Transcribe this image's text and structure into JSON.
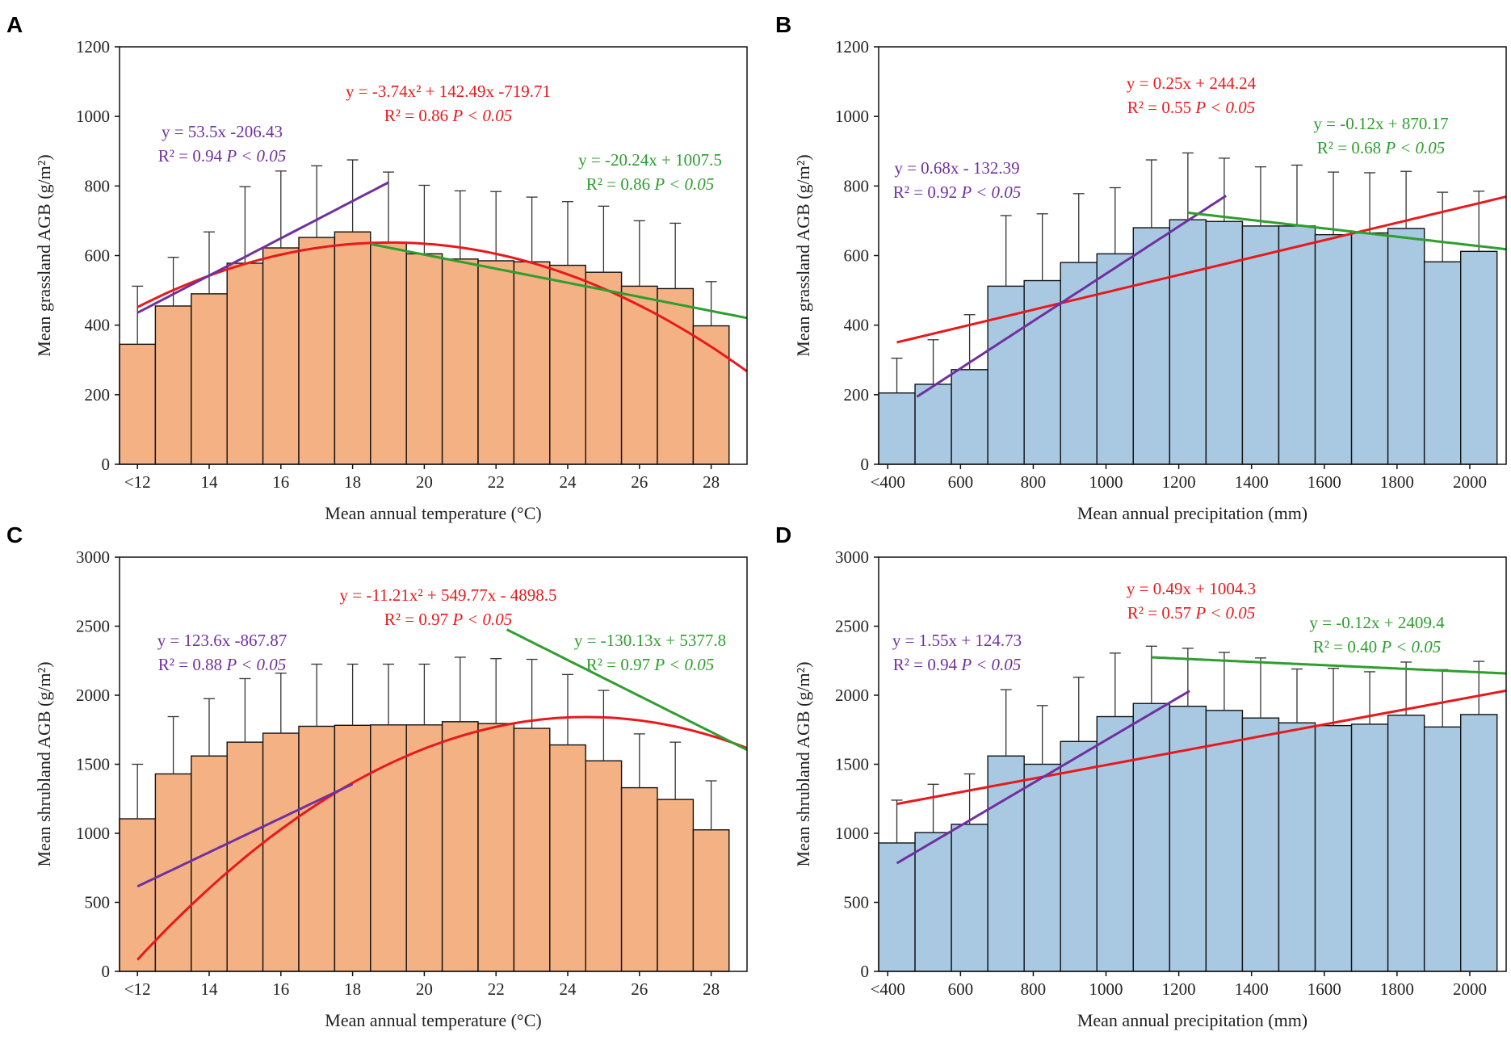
{
  "colors": {
    "temperature_bar": "#F4B183",
    "precipitation_bar": "#A9C9E3",
    "red_fit": "#E8191C",
    "purple_fit": "#7030A0",
    "green_fit": "#2E9E2E"
  },
  "chart_data": [
    {
      "panel": "A",
      "type": "bar",
      "ylabel": "Mean grassland AGB (g/m²)",
      "xlabel": "Mean annual temperature (°C)",
      "ylim": [
        0,
        1200
      ],
      "yticks": [
        0,
        200,
        400,
        600,
        800,
        1000,
        1200
      ],
      "xlim": [
        11.5,
        29
      ],
      "xticks": [
        12,
        14,
        16,
        18,
        20,
        22,
        24,
        26,
        28
      ],
      "xtick_labels": [
        "<12",
        "14",
        "16",
        "18",
        "20",
        "22",
        "24",
        "26",
        "28"
      ],
      "bar_color_key": "temperature_bar",
      "bar_width": 1,
      "x": [
        12,
        13,
        14,
        15,
        16,
        17,
        18,
        19,
        20,
        21,
        22,
        23,
        24,
        25,
        26,
        27,
        28
      ],
      "values": [
        345,
        455,
        490,
        578,
        622,
        652,
        668,
        638,
        605,
        590,
        585,
        582,
        572,
        552,
        512,
        505,
        398
      ],
      "errors_upper": [
        512,
        595,
        668,
        798,
        843,
        858,
        875,
        840,
        802,
        786,
        784,
        768,
        755,
        742,
        700,
        693,
        525
      ],
      "fits": [
        {
          "name": "quadratic-fit",
          "color_key": "red_fit",
          "coef": [
            -3.74,
            142.49,
            -719.71
          ],
          "x_range": [
            12,
            29
          ]
        },
        {
          "name": "rising-linear-fit",
          "color_key": "purple_fit",
          "coef": [
            53.5,
            -206.43
          ],
          "x_range": [
            12,
            19
          ]
        },
        {
          "name": "falling-linear-fit",
          "color_key": "green_fit",
          "coef": [
            -20.24,
            1007.5
          ],
          "x_range": [
            18.5,
            29
          ]
        }
      ],
      "annotations": [
        {
          "name": "quadratic-annotation",
          "color_key": "red_fit",
          "line1": "y = -3.74x² + 142.49x -719.71",
          "line2_r": "R² = 0.86",
          "line2_p": "P < 0.05"
        },
        {
          "name": "rising-annotation",
          "color_key": "purple_fit",
          "line1": "y = 53.5x -206.43",
          "line2_r": "R² = 0.94",
          "line2_p": "P < 0.05"
        },
        {
          "name": "falling-annotation",
          "color_key": "green_fit",
          "line1": "y = -20.24x + 1007.5",
          "line2_r": "R² = 0.86",
          "line2_p": "P < 0.05"
        }
      ]
    },
    {
      "panel": "B",
      "type": "bar",
      "ylabel": "Mean grassland AGB (g/m²)",
      "xlabel": "Mean annual precipitation (mm)",
      "ylim": [
        0,
        1200
      ],
      "yticks": [
        0,
        200,
        400,
        600,
        800,
        1000,
        1200
      ],
      "xlim": [
        375,
        2100
      ],
      "xticks": [
        400,
        600,
        800,
        1000,
        1200,
        1400,
        1600,
        1800,
        2000
      ],
      "xtick_labels": [
        "<400",
        "600",
        "800",
        "1000",
        "1200",
        "1400",
        "1600",
        "1800",
        "2000"
      ],
      "bar_color_key": "precipitation_bar",
      "bar_width": 100,
      "x": [
        425,
        525,
        625,
        725,
        825,
        925,
        1025,
        1125,
        1225,
        1325,
        1425,
        1525,
        1625,
        1725,
        1825,
        1925,
        2025
      ],
      "values": [
        205,
        230,
        272,
        512,
        528,
        580,
        605,
        680,
        703,
        698,
        685,
        685,
        660,
        665,
        678,
        582,
        612
      ],
      "errors_upper": [
        305,
        358,
        430,
        715,
        720,
        778,
        795,
        875,
        895,
        880,
        855,
        860,
        840,
        838,
        842,
        782,
        785
      ],
      "fits": [
        {
          "name": "overall-linear-fit",
          "color_key": "red_fit",
          "coef": [
            0.25,
            244.24
          ],
          "x_range": [
            425,
            2100
          ]
        },
        {
          "name": "rising-linear-fit",
          "color_key": "purple_fit",
          "coef": [
            0.68,
            -132.39
          ],
          "x_range": [
            480,
            1330
          ]
        },
        {
          "name": "falling-linear-fit",
          "color_key": "green_fit",
          "coef": [
            -0.12,
            870.17
          ],
          "x_range": [
            1225,
            2100
          ]
        }
      ],
      "annotations": [
        {
          "name": "overall-annotation",
          "color_key": "red_fit",
          "line1": "y = 0.25x + 244.24",
          "line2_r": "R² = 0.55",
          "line2_p": "P < 0.05"
        },
        {
          "name": "rising-annotation",
          "color_key": "purple_fit",
          "line1": "y = 0.68x - 132.39",
          "line2_r": "R² = 0.92",
          "line2_p": "P < 0.05"
        },
        {
          "name": "falling-annotation",
          "color_key": "green_fit",
          "line1": "y = -0.12x + 870.17",
          "line2_r": "R² = 0.68",
          "line2_p": "P < 0.05"
        }
      ]
    },
    {
      "panel": "C",
      "type": "bar",
      "ylabel": "Mean shrubland AGB (g/m²)",
      "xlabel": "Mean annual temperature (°C)",
      "ylim": [
        0,
        3000
      ],
      "yticks": [
        0,
        500,
        1000,
        1500,
        2000,
        2500,
        3000
      ],
      "xlim": [
        11.5,
        29
      ],
      "xticks": [
        12,
        14,
        16,
        18,
        20,
        22,
        24,
        26,
        28
      ],
      "xtick_labels": [
        "<12",
        "14",
        "16",
        "18",
        "20",
        "22",
        "24",
        "26",
        "28"
      ],
      "bar_color_key": "temperature_bar",
      "bar_width": 1,
      "x": [
        12,
        13,
        14,
        15,
        16,
        17,
        18,
        19,
        20,
        21,
        22,
        23,
        24,
        25,
        26,
        27,
        28
      ],
      "values": [
        1105,
        1430,
        1560,
        1660,
        1725,
        1775,
        1782,
        1785,
        1785,
        1808,
        1795,
        1760,
        1640,
        1525,
        1330,
        1245,
        1025
      ],
      "errors_upper": [
        1500,
        1845,
        1975,
        2120,
        2160,
        2225,
        2225,
        2225,
        2225,
        2275,
        2265,
        2260,
        2150,
        2035,
        1720,
        1660,
        1380
      ],
      "fits": [
        {
          "name": "quadratic-fit",
          "color_key": "red_fit",
          "coef": [
            -11.21,
            549.77,
            -4898.5
          ],
          "x_range": [
            12,
            29
          ]
        },
        {
          "name": "rising-linear-fit",
          "color_key": "purple_fit",
          "coef": [
            123.6,
            -867.87
          ],
          "x_range": [
            12,
            18
          ]
        },
        {
          "name": "falling-linear-fit",
          "color_key": "green_fit",
          "coef": [
            -130.13,
            5377.8
          ],
          "x_range": [
            22.3,
            29
          ]
        }
      ],
      "annotations": [
        {
          "name": "quadratic-annotation",
          "color_key": "red_fit",
          "line1": "y = -11.21x² + 549.77x - 4898.5",
          "line2_r": "R² = 0.97",
          "line2_p": "P < 0.05"
        },
        {
          "name": "rising-annotation",
          "color_key": "purple_fit",
          "line1": "y = 123.6x -867.87",
          "line2_r": "R² = 0.88",
          "line2_p": "P < 0.05"
        },
        {
          "name": "falling-annotation",
          "color_key": "green_fit",
          "line1": "y = -130.13x + 5377.8",
          "line2_r": "R² = 0.97",
          "line2_p": "P < 0.05"
        }
      ]
    },
    {
      "panel": "D",
      "type": "bar",
      "ylabel": "Mean shrubland AGB (g/m²)",
      "xlabel": "Mean annual precipitation (mm)",
      "ylim": [
        0,
        3000
      ],
      "yticks": [
        0,
        500,
        1000,
        1500,
        2000,
        2500,
        3000
      ],
      "xlim": [
        375,
        2100
      ],
      "xticks": [
        400,
        600,
        800,
        1000,
        1200,
        1400,
        1600,
        1800,
        2000
      ],
      "xtick_labels": [
        "<400",
        "600",
        "800",
        "1000",
        "1200",
        "1400",
        "1600",
        "1800",
        "2000"
      ],
      "bar_color_key": "precipitation_bar",
      "bar_width": 100,
      "x": [
        425,
        525,
        625,
        725,
        825,
        925,
        1025,
        1125,
        1225,
        1325,
        1425,
        1525,
        1625,
        1725,
        1825,
        1925,
        2025
      ],
      "values": [
        930,
        1005,
        1065,
        1560,
        1500,
        1665,
        1845,
        1940,
        1920,
        1890,
        1835,
        1800,
        1780,
        1790,
        1855,
        1770,
        1860
      ],
      "errors_upper": [
        1240,
        1355,
        1430,
        2040,
        1925,
        2130,
        2305,
        2355,
        2340,
        2310,
        2270,
        2190,
        2195,
        2170,
        2240,
        2185,
        2245
      ],
      "fits": [
        {
          "name": "overall-linear-fit",
          "color_key": "red_fit",
          "coef": [
            0.49,
            1004.3
          ],
          "x_range": [
            425,
            2100
          ]
        },
        {
          "name": "rising-linear-fit",
          "color_key": "purple_fit",
          "coef": [
            1.55,
            124.73
          ],
          "x_range": [
            425,
            1230
          ]
        },
        {
          "name": "falling-linear-fit",
          "color_key": "green_fit",
          "coef": [
            -0.12,
            2409.4
          ],
          "x_range": [
            1125,
            2100
          ]
        }
      ],
      "annotations": [
        {
          "name": "overall-annotation",
          "color_key": "red_fit",
          "line1": "y = 0.49x + 1004.3",
          "line2_r": "R² = 0.57",
          "line2_p": "P < 0.05"
        },
        {
          "name": "rising-annotation",
          "color_key": "purple_fit",
          "line1": "y = 1.55x + 124.73",
          "line2_r": "R² = 0.94",
          "line2_p": "P < 0.05"
        },
        {
          "name": "falling-annotation",
          "color_key": "green_fit",
          "line1": "y = -0.12x + 2409.4",
          "line2_r": "R² = 0.40",
          "line2_p": "P < 0.05"
        }
      ]
    }
  ]
}
